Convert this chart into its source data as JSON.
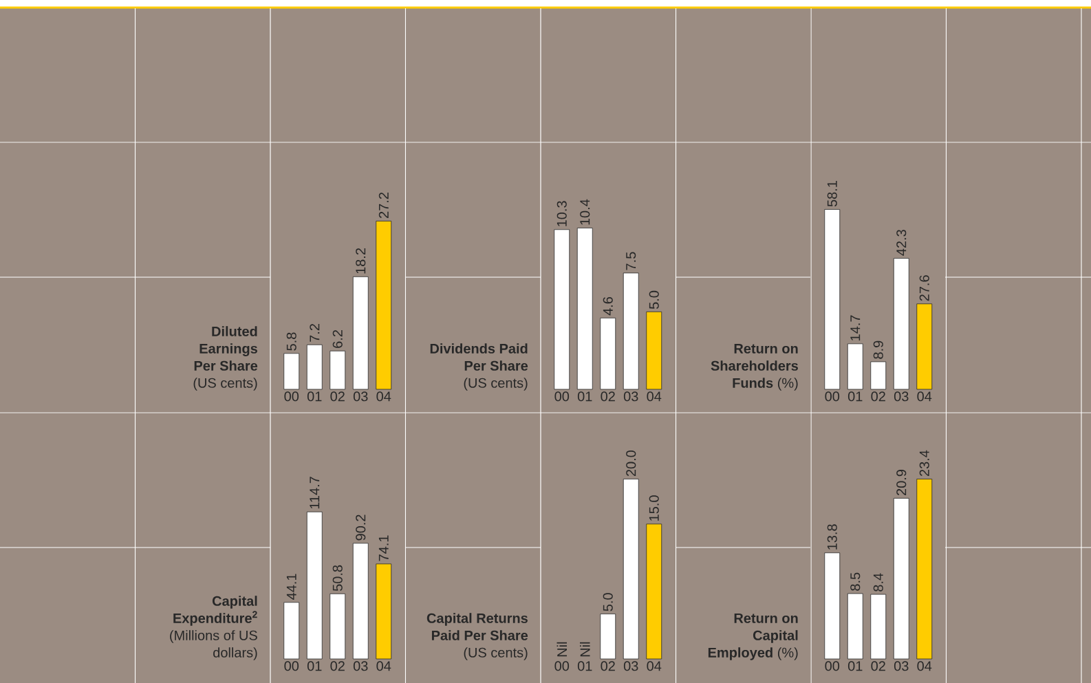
{
  "chart_data": [
    {
      "type": "bar",
      "title": "Diluted Earnings Per Share",
      "subtitle": "(US cents)",
      "categories": [
        "00",
        "01",
        "02",
        "03",
        "04"
      ],
      "values": [
        5.8,
        7.2,
        6.2,
        18.2,
        27.2
      ],
      "value_labels": [
        "5.8",
        "7.2",
        "6.2",
        "18.2",
        "27.2"
      ],
      "colors": [
        "#ffffff",
        "#ffffff",
        "#ffffff",
        "#ffffff",
        "#ffcc00"
      ],
      "tick_labels": "x"
    },
    {
      "type": "bar",
      "title": "Dividends Paid Per Share",
      "subtitle": "(US cents)",
      "categories": [
        "00",
        "01",
        "02",
        "03",
        "04"
      ],
      "values": [
        10.3,
        10.4,
        4.6,
        7.5,
        5.0
      ],
      "value_labels": [
        "10.3",
        "10.4",
        "4.6",
        "7.5",
        "5.0"
      ],
      "colors": [
        "#ffffff",
        "#ffffff",
        "#ffffff",
        "#ffffff",
        "#ffcc00"
      ],
      "tick_labels": "x"
    },
    {
      "type": "bar",
      "title": "Return on Shareholders Funds",
      "subtitle": "(%)",
      "categories": [
        "00",
        "01",
        "02",
        "03",
        "04"
      ],
      "values": [
        58.1,
        14.7,
        8.9,
        42.3,
        27.6
      ],
      "value_labels": [
        "58.1",
        "14.7",
        "8.9",
        "42.3",
        "27.6"
      ],
      "colors": [
        "#ffffff",
        "#ffffff",
        "#ffffff",
        "#ffffff",
        "#ffcc00"
      ],
      "tick_labels": "x"
    },
    {
      "type": "bar",
      "title": "Capital Expenditure$^{2}$",
      "subtitle": "(Millions of US dollars)",
      "categories": [
        "00",
        "01",
        "02",
        "03",
        "04"
      ],
      "values": [
        44.1,
        114.7,
        50.8,
        90.2,
        74.1
      ],
      "value_labels": [
        "44.1",
        "114.7",
        "50.8",
        "90.2",
        "74.1"
      ],
      "colors": [
        "#ffffff",
        "#ffffff",
        "#ffffff",
        "#ffffff",
        "#ffcc00"
      ],
      "tick_labels": "x"
    },
    {
      "type": "bar",
      "title": "Capital Returns Paid Per Share",
      "subtitle": "(US cents)",
      "categories": [
        "00",
        "01",
        "02",
        "03",
        "04"
      ],
      "values": [
        null,
        null,
        5.0,
        20.0,
        15.0
      ],
      "value_labels": [
        "Nil",
        "Nil",
        "5.0",
        "20.0",
        "15.0"
      ],
      "colors": [
        "#ffffff",
        "#ffffff",
        "#ffffff",
        "#ffffff",
        "#ffcc00"
      ],
      "tick_labels": "x"
    },
    {
      "type": "bar",
      "title": "Return on Capital Employed",
      "subtitle": "(%)",
      "categories": [
        "00",
        "01",
        "02",
        "03",
        "04"
      ],
      "values": [
        13.8,
        8.5,
        8.4,
        20.9,
        23.4
      ],
      "value_labels": [
        "13.8",
        "8.5",
        "8.4",
        "20.9",
        "23.4"
      ],
      "colors": [
        "#ffffff",
        "#ffffff",
        "#ffffff",
        "#ffffff",
        "#ffcc00"
      ],
      "tick_labels": "x"
    }
  ]
}
